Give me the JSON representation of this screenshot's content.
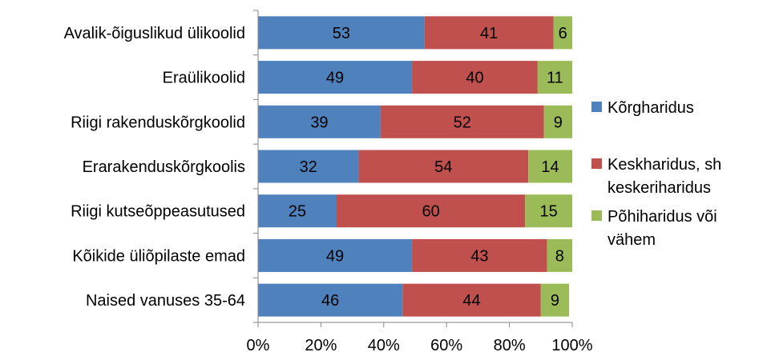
{
  "chart_data": {
    "type": "bar",
    "orientation": "horizontal",
    "stacked": "percent",
    "categories": [
      "Avalik-õiguslikud ülikoolid",
      "Eraülikoolid",
      "Riigi rakenduskõrgkoolid",
      "Erarakenduskõrgkoolis",
      "Riigi kutseõppeasutused",
      "Kõikide üliõpilaste emad",
      "Naised vanuses 35-64"
    ],
    "series": [
      {
        "name": "Kõrgharidus",
        "color": "#4f81bd",
        "values": [
          53,
          49,
          39,
          32,
          25,
          49,
          46
        ]
      },
      {
        "name_lines": [
          "Keskharidus, sh",
          "keskeriharidus"
        ],
        "color": "#c0504d",
        "values": [
          41,
          40,
          52,
          54,
          60,
          43,
          44
        ]
      },
      {
        "name_lines": [
          "Põhiharidus või",
          "vähem"
        ],
        "color": "#9bbb59",
        "values": [
          6,
          11,
          9,
          14,
          15,
          8,
          9
        ]
      }
    ],
    "xticks": [
      "0%",
      "20%",
      "40%",
      "60%",
      "80%",
      "100%"
    ],
    "xlim": [
      0,
      100
    ],
    "grid": false,
    "legend": "right"
  }
}
